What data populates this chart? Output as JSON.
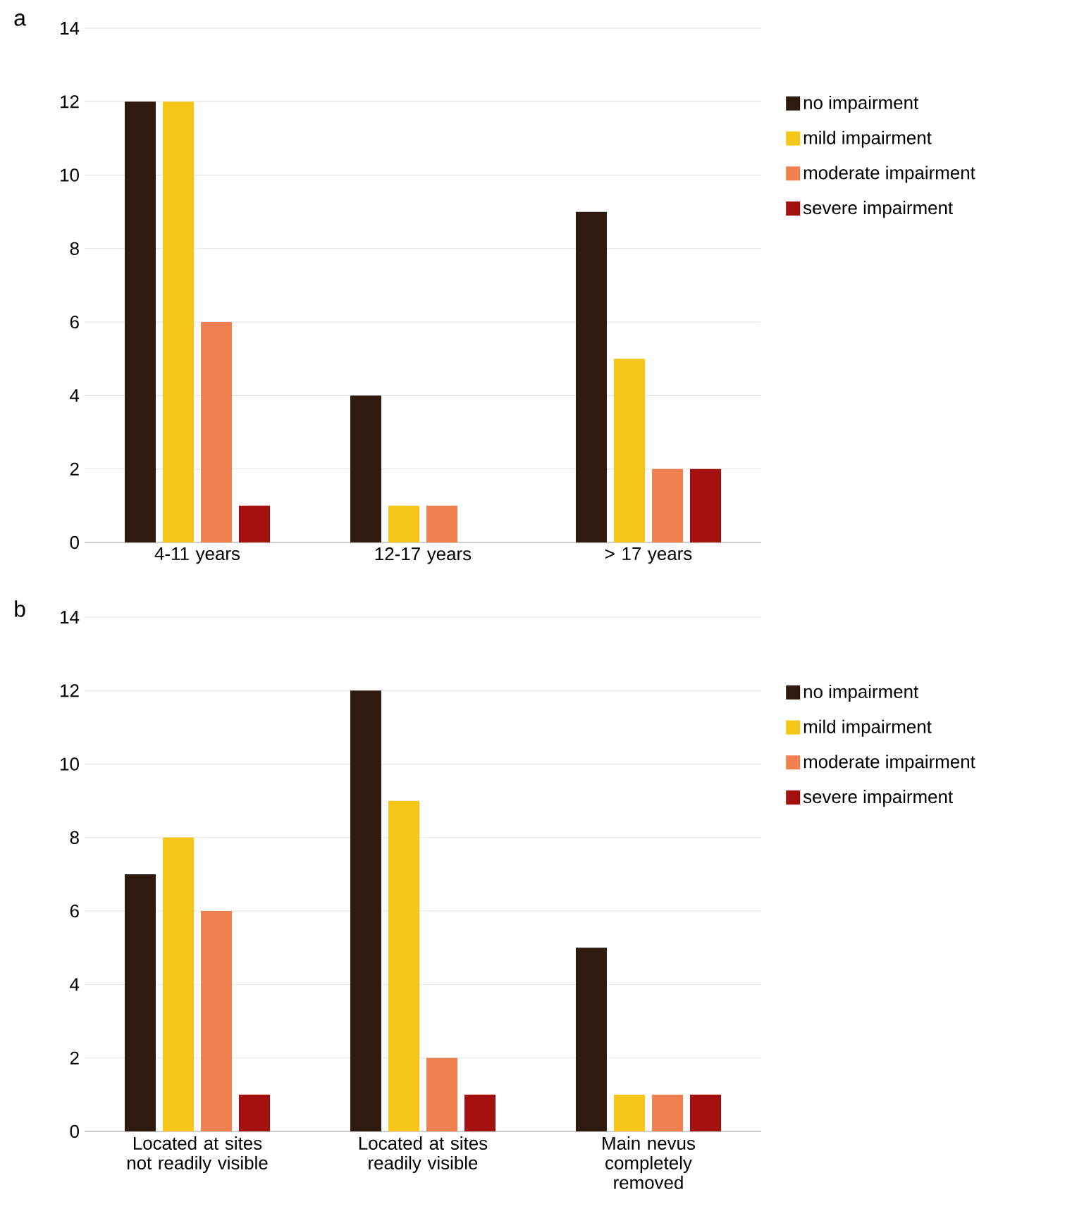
{
  "chart_data": [
    {
      "type": "bar",
      "title": "a",
      "categories": [
        "4-11 years",
        "12-17 years",
        "> 17 years"
      ],
      "series": [
        {
          "name": "no impairment",
          "color": "#2e1a0e",
          "values": [
            12,
            4,
            9
          ]
        },
        {
          "name": "mild impairment",
          "color": "#f5c518",
          "values": [
            12,
            1,
            5
          ]
        },
        {
          "name": "moderate impairment",
          "color": "#f08050",
          "values": [
            6,
            1,
            2
          ]
        },
        {
          "name": "severe impairment",
          "color": "#a50f0f",
          "values": [
            1,
            null,
            2
          ]
        }
      ],
      "ylim": [
        0,
        14
      ],
      "yticks": [
        0,
        2,
        4,
        6,
        8,
        10,
        12,
        14
      ],
      "grid": "y",
      "legend": "right"
    },
    {
      "type": "bar",
      "title": "b",
      "categories": [
        "Located at sites not readily visible",
        "Located at sites readily visible",
        "Main nevus completely removed"
      ],
      "series": [
        {
          "name": "no impairment",
          "color": "#2e1a0e",
          "values": [
            7,
            12,
            5
          ]
        },
        {
          "name": "mild impairment",
          "color": "#f5c518",
          "values": [
            8,
            9,
            1
          ]
        },
        {
          "name": "moderate impairment",
          "color": "#f08050",
          "values": [
            6,
            2,
            1
          ]
        },
        {
          "name": "severe impairment",
          "color": "#a50f0f",
          "values": [
            1,
            1,
            1
          ]
        }
      ],
      "ylim": [
        0,
        14
      ],
      "yticks": [
        0,
        2,
        4,
        6,
        8,
        10,
        12,
        14
      ],
      "grid": "y",
      "legend": "right"
    }
  ]
}
